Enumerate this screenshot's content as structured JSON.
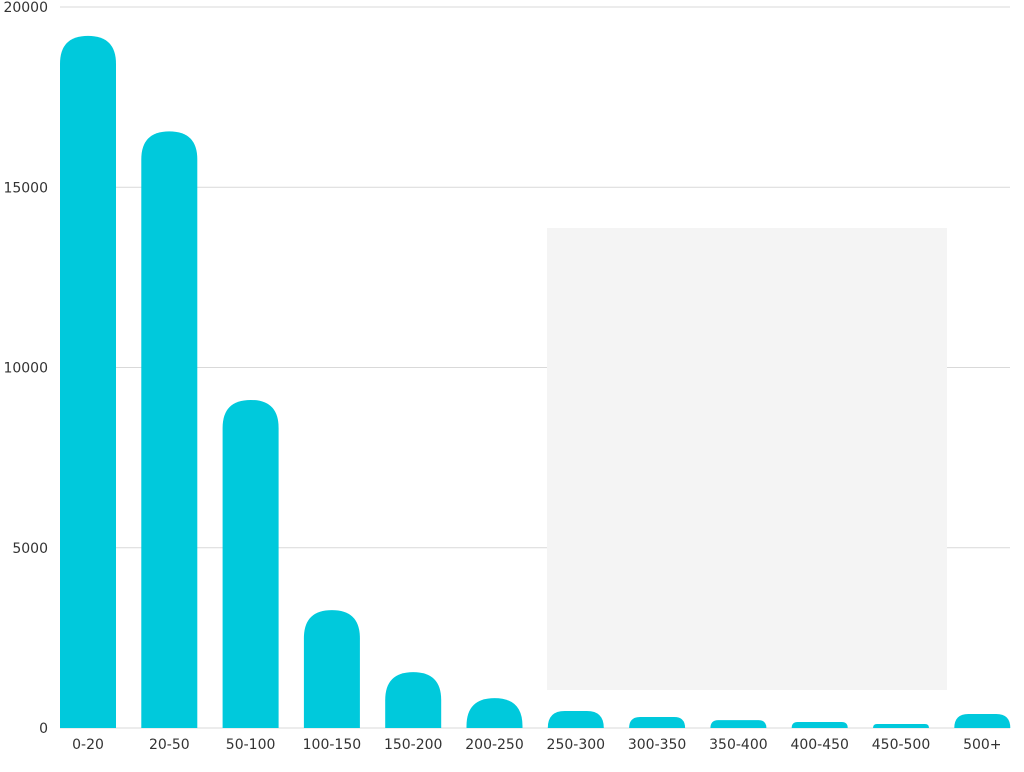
{
  "chart_data": {
    "type": "bar",
    "title": "",
    "xlabel": "",
    "ylabel": "",
    "categories": [
      "0-20",
      "20-50",
      "50-100",
      "100-150",
      "150-200",
      "200-250",
      "250-300",
      "300-350",
      "350-400",
      "400-450",
      "450-500",
      "500+"
    ],
    "values": [
      19200,
      16550,
      9100,
      3270,
      1550,
      830,
      470,
      305,
      220,
      165,
      110,
      390
    ],
    "ylim": [
      0,
      20000
    ],
    "yticks": [
      "0",
      "5000",
      "10000",
      "15000",
      "20000"
    ],
    "grid": true,
    "legend": "none",
    "colors": {
      "bar": "#00c9dc",
      "grid": "#d9d9d9",
      "overlay": "#f4f4f4"
    }
  }
}
